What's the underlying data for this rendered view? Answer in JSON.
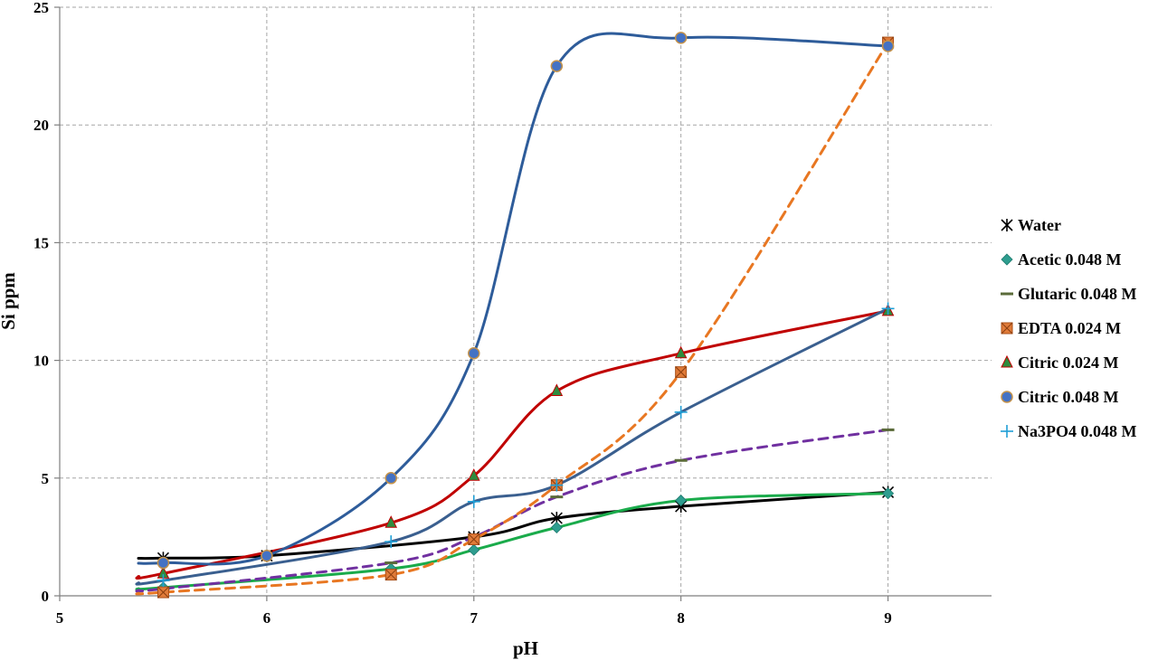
{
  "chart_data": {
    "type": "line",
    "title": "",
    "xlabel": "pH",
    "ylabel": "Si ppm",
    "xlim": [
      5,
      9.5
    ],
    "ylim": [
      0,
      25
    ],
    "xticks": [
      "5",
      "6",
      "7",
      "8",
      "9"
    ],
    "yticks": [
      "0",
      "5",
      "10",
      "15",
      "20",
      "25"
    ],
    "grid": true,
    "legend_position": "right",
    "series": [
      {
        "name": "Water",
        "marker": "asterisk",
        "color": "#000000",
        "line_color": "#000000",
        "dashed": false,
        "points": [
          [
            5.5,
            1.6
          ],
          [
            6.0,
            1.7
          ],
          [
            7.0,
            2.5
          ],
          [
            7.4,
            3.3
          ],
          [
            8.0,
            3.8
          ],
          [
            9.0,
            4.4
          ]
        ]
      },
      {
        "name": "Acetic 0.048 M",
        "marker": "diamond",
        "color": "#2e9d8f",
        "line_color": "#1aab4b",
        "dashed": false,
        "points": [
          [
            5.5,
            0.35
          ],
          [
            6.6,
            1.15
          ],
          [
            7.0,
            1.95
          ],
          [
            7.4,
            2.9
          ],
          [
            8.0,
            4.05
          ],
          [
            9.0,
            4.35
          ]
        ]
      },
      {
        "name": "Glutaric 0.048 M",
        "marker": "dash",
        "color": "#5b6b3a",
        "line_color": "#7030a0",
        "dashed": true,
        "points": [
          [
            5.5,
            0.3
          ],
          [
            6.6,
            1.4
          ],
          [
            7.0,
            2.5
          ],
          [
            7.4,
            4.2
          ],
          [
            8.0,
            5.75
          ],
          [
            9.0,
            7.05
          ]
        ]
      },
      {
        "name": "EDTA 0.024 M",
        "marker": "square-x",
        "color": "#e07b39",
        "line_color": "#e87722",
        "dashed": true,
        "points": [
          [
            5.5,
            0.15
          ],
          [
            6.6,
            0.9
          ],
          [
            7.0,
            2.4
          ],
          [
            7.4,
            4.7
          ],
          [
            8.0,
            9.5
          ],
          [
            9.0,
            23.5
          ]
        ]
      },
      {
        "name": "Citric 0.024 M",
        "marker": "triangle",
        "color": "#2e8b3e",
        "line_color": "#c00000",
        "dashed": false,
        "points": [
          [
            5.5,
            0.95
          ],
          [
            6.6,
            3.1
          ],
          [
            7.0,
            5.1
          ],
          [
            7.4,
            8.7
          ],
          [
            8.0,
            10.3
          ],
          [
            9.0,
            12.1
          ]
        ]
      },
      {
        "name": "Citric 0.048 M",
        "marker": "circle",
        "color": "#4472c4",
        "line_color": "#2e5c9a",
        "dashed": false,
        "points": [
          [
            5.5,
            1.4
          ],
          [
            6.0,
            1.7
          ],
          [
            6.6,
            5.0
          ],
          [
            7.0,
            10.3
          ],
          [
            7.4,
            22.5
          ],
          [
            8.0,
            23.7
          ],
          [
            9.0,
            23.35
          ]
        ]
      },
      {
        "name": "Na3PO4 0.048 M",
        "marker": "plus",
        "color": "#1f9fd6",
        "line_color": "#3a5f8f",
        "dashed": false,
        "points": [
          [
            5.5,
            0.65
          ],
          [
            6.6,
            2.3
          ],
          [
            7.0,
            4.0
          ],
          [
            7.4,
            4.7
          ],
          [
            8.0,
            7.8
          ],
          [
            9.0,
            12.2
          ]
        ]
      }
    ]
  }
}
